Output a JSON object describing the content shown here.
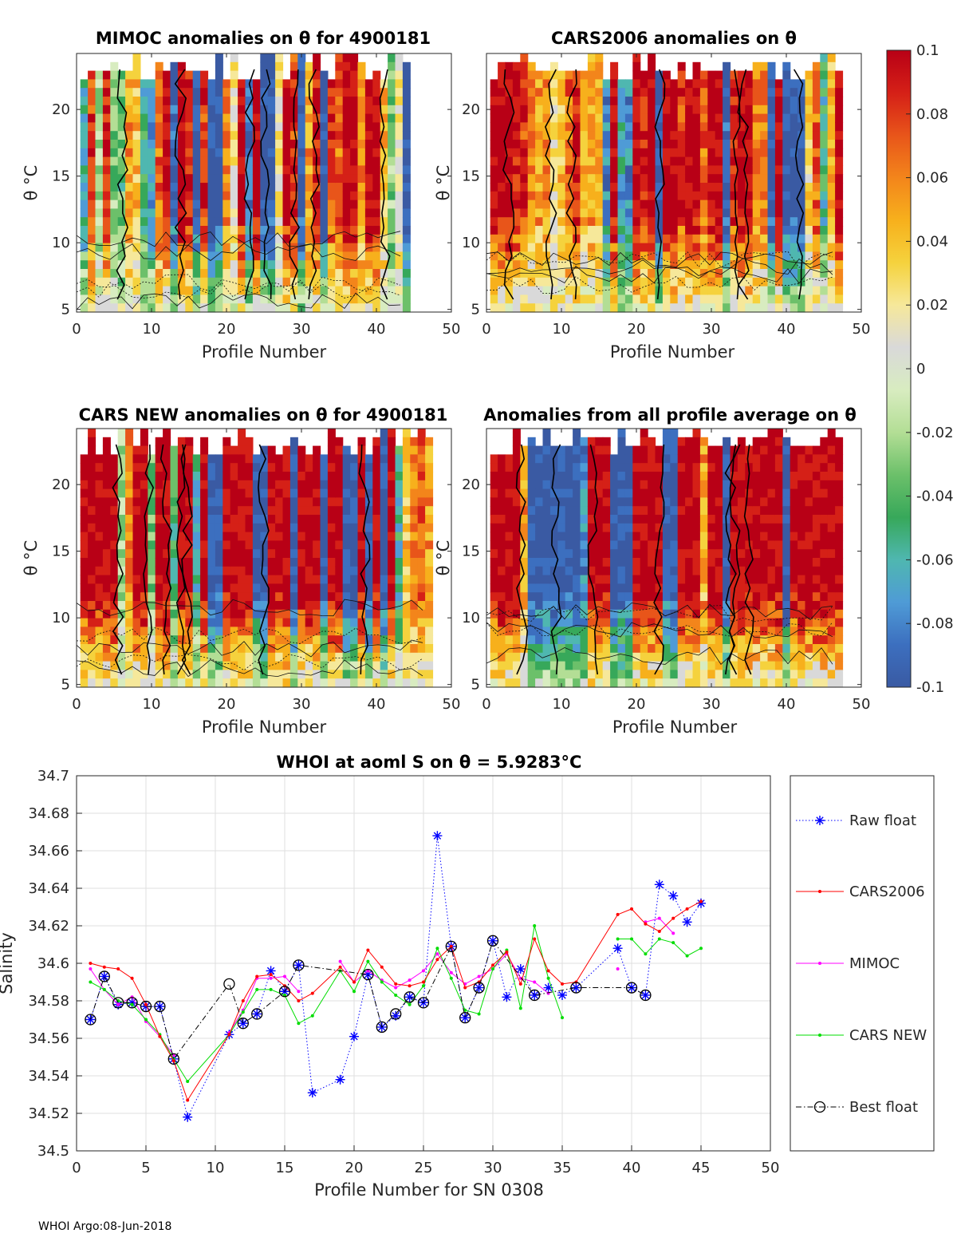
{
  "footer": "WHOI Argo:08-Jun-2018",
  "colorbar": {
    "ticks": [
      "0.1",
      "0.08",
      "0.06",
      "0.04",
      "0.02",
      "0",
      "-0.02",
      "-0.04",
      "-0.06",
      "-0.08",
      "-0.1"
    ],
    "colors": [
      "#3a5aa3",
      "#3c6fbf",
      "#4f9bd6",
      "#4fb7b0",
      "#37a85a",
      "#6cc06a",
      "#b3de95",
      "#d8ecc0",
      "#d9d9d9",
      "#f6e89a",
      "#f5d23d",
      "#f7b01c",
      "#f3851b",
      "#e8551a",
      "#d52017",
      "#b80016"
    ]
  },
  "panels": [
    {
      "title": "MIMOC anomalies on θ  for 4900181",
      "xlabel": "Profile Number",
      "ylabel": "θ °C",
      "xticks": [
        "0",
        "10",
        "20",
        "30",
        "40",
        "50"
      ],
      "yticks": [
        "5",
        "10",
        "15",
        "20"
      ]
    },
    {
      "title": "CARS2006 anomalies on θ",
      "xlabel": "Profile Number",
      "ylabel": "θ °C",
      "xticks": [
        "0",
        "10",
        "20",
        "30",
        "40",
        "50"
      ],
      "yticks": [
        "5",
        "10",
        "15",
        "20"
      ]
    },
    {
      "title": "CARS NEW anomalies on θ for 4900181",
      "xlabel": "Profile Number",
      "ylabel": "θ °C",
      "xticks": [
        "0",
        "10",
        "20",
        "30",
        "40",
        "50"
      ],
      "yticks": [
        "5",
        "10",
        "15",
        "20"
      ]
    },
    {
      "title": "Anomalies from all profile average on θ",
      "xlabel": "Profile Number",
      "ylabel": "θ °C",
      "xticks": [
        "0",
        "10",
        "20",
        "30",
        "40",
        "50"
      ],
      "yticks": [
        "5",
        "10",
        "15",
        "20"
      ]
    }
  ],
  "chart_data": {
    "type": "line",
    "title": "WHOI at aoml S on θ = 5.9283°C",
    "xlabel": "Profile Number for SN 0308",
    "ylabel": "Salinity",
    "xlim": [
      0,
      50
    ],
    "ylim": [
      34.5,
      34.7
    ],
    "xticks": [
      0,
      5,
      10,
      15,
      20,
      25,
      30,
      35,
      40,
      45,
      50
    ],
    "yticks": [
      34.5,
      34.52,
      34.54,
      34.56,
      34.58,
      34.6,
      34.62,
      34.64,
      34.66,
      34.68,
      34.7
    ],
    "grid": true,
    "legend_position": "right",
    "series": [
      {
        "name": "Raw float",
        "color": "#0000ff",
        "style": "dotted",
        "marker": "asterisk",
        "x": [
          1,
          2,
          3,
          4,
          5,
          6,
          7,
          8,
          11,
          12,
          13,
          14,
          15,
          16,
          17,
          19,
          20,
          21,
          22,
          23,
          24,
          25,
          26,
          27,
          28,
          29,
          30,
          31,
          32,
          33,
          34,
          35,
          36,
          39,
          40,
          41,
          42,
          43,
          44,
          45
        ],
        "y": [
          34.57,
          34.593,
          34.578,
          34.579,
          34.577,
          34.577,
          34.549,
          34.518,
          34.562,
          34.568,
          34.573,
          34.596,
          34.585,
          34.599,
          34.531,
          34.538,
          34.561,
          34.594,
          34.566,
          34.572,
          34.582,
          34.579,
          34.668,
          34.609,
          34.571,
          34.587,
          34.612,
          34.582,
          34.597,
          34.583,
          34.587,
          34.583,
          34.587,
          34.608,
          34.587,
          34.583,
          34.642,
          34.636,
          34.622,
          34.632
        ]
      },
      {
        "name": "CARS2006",
        "color": "#ff0000",
        "style": "solid",
        "marker": "dot",
        "x": [
          1,
          2,
          3,
          4,
          5,
          6,
          7,
          8,
          11,
          12,
          13,
          14,
          15,
          16,
          17,
          19,
          20,
          21,
          22,
          23,
          24,
          25,
          26,
          27,
          28,
          29,
          30,
          31,
          32,
          33,
          34,
          35,
          36,
          39,
          40,
          41,
          42,
          43,
          44,
          45
        ],
        "y": [
          34.6,
          34.598,
          34.597,
          34.592,
          34.578,
          34.561,
          34.548,
          34.527,
          34.562,
          34.58,
          34.593,
          34.594,
          34.588,
          34.58,
          34.584,
          34.598,
          34.59,
          34.607,
          34.598,
          34.589,
          34.588,
          34.59,
          34.602,
          34.609,
          34.587,
          34.59,
          34.599,
          34.606,
          34.589,
          34.613,
          34.596,
          34.589,
          34.59,
          34.626,
          34.629,
          34.621,
          34.617,
          34.624,
          34.629,
          34.633
        ]
      },
      {
        "name": "MIMOC",
        "color": "#ff00ff",
        "style": "solid",
        "marker": "dot",
        "x": [
          1,
          2,
          3,
          4,
          5,
          6,
          7,
          8,
          11,
          12,
          13,
          14,
          15,
          16,
          17,
          19,
          20,
          21,
          22,
          23,
          24,
          25,
          26,
          27,
          28,
          29,
          30,
          31,
          32,
          33,
          34,
          35,
          36,
          39,
          40,
          41,
          42,
          43,
          44,
          45
        ],
        "y": [
          34.597,
          34.586,
          34.578,
          34.582,
          34.569,
          34.561,
          34.551,
          null,
          34.563,
          34.575,
          34.592,
          34.592,
          34.593,
          34.585,
          null,
          34.601,
          34.59,
          34.596,
          34.591,
          34.587,
          34.591,
          34.596,
          34.605,
          34.595,
          34.589,
          34.593,
          34.597,
          34.605,
          34.592,
          34.59,
          34.584,
          null,
          null,
          34.597,
          null,
          34.622,
          34.624,
          34.616,
          null,
          null
        ]
      },
      {
        "name": "CARS NEW",
        "color": "#00dd00",
        "style": "solid",
        "marker": "dot",
        "x": [
          1,
          2,
          3,
          4,
          5,
          6,
          7,
          8,
          11,
          12,
          13,
          14,
          15,
          16,
          17,
          19,
          20,
          21,
          22,
          23,
          24,
          25,
          26,
          27,
          28,
          29,
          30,
          31,
          32,
          33,
          34,
          35,
          36,
          39,
          40,
          41,
          42,
          43,
          44,
          45
        ],
        "y": [
          34.59,
          34.586,
          34.58,
          34.578,
          34.57,
          34.562,
          34.549,
          34.537,
          34.562,
          34.574,
          34.586,
          34.586,
          34.583,
          34.568,
          34.572,
          34.596,
          34.585,
          34.601,
          34.59,
          34.583,
          34.578,
          34.588,
          34.608,
          34.592,
          34.575,
          34.573,
          34.597,
          34.607,
          34.576,
          34.62,
          34.592,
          34.571,
          null,
          34.613,
          34.613,
          34.605,
          34.613,
          34.611,
          34.604,
          34.608
        ]
      },
      {
        "name": "Best float",
        "color": "#000000",
        "style": "dashdot",
        "marker": "circle",
        "x": [
          1,
          2,
          3,
          4,
          5,
          6,
          7,
          11,
          12,
          13,
          15,
          16,
          21,
          22,
          23,
          24,
          25,
          27,
          28,
          29,
          30,
          33,
          36,
          40,
          41
        ],
        "y": [
          34.57,
          34.593,
          34.579,
          34.579,
          34.577,
          34.577,
          34.549,
          34.589,
          34.568,
          34.573,
          34.585,
          34.599,
          34.594,
          34.566,
          34.573,
          34.582,
          34.579,
          34.609,
          34.571,
          34.587,
          34.612,
          34.583,
          34.587,
          34.587,
          34.583
        ]
      }
    ]
  }
}
